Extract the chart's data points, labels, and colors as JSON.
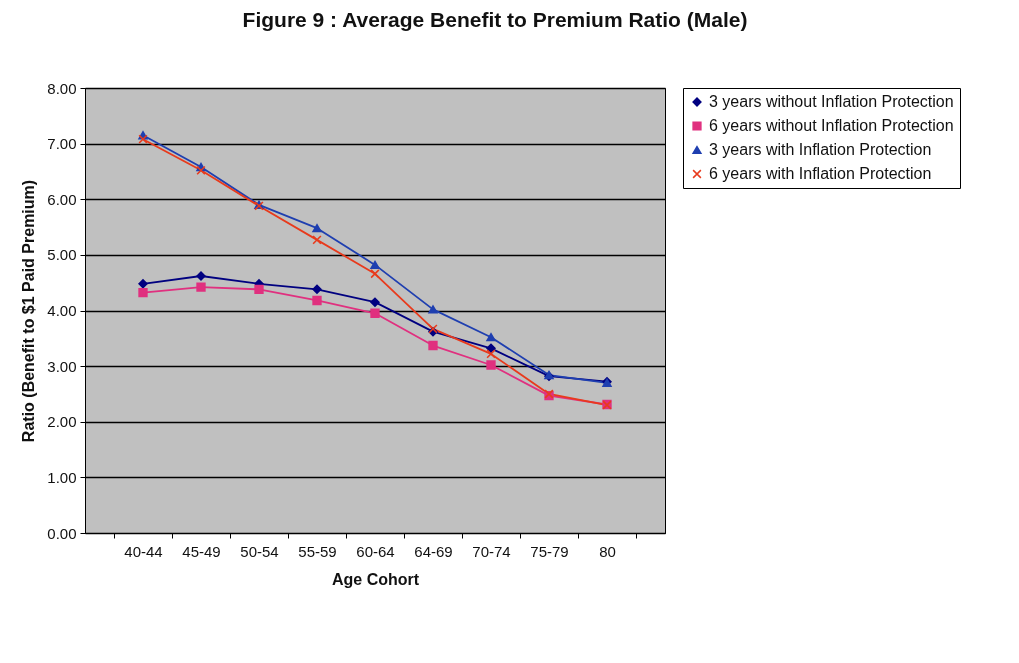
{
  "chart_data": {
    "type": "line",
    "title": "Figure 9 : Average Benefit to Premium Ratio (Male)",
    "xlabel": "Age Cohort",
    "ylabel": "Ratio (Benefit to $1 Paid Premium)",
    "categories": [
      "40-44",
      "45-49",
      "50-54",
      "55-59",
      "60-64",
      "64-69",
      "70-74",
      "75-79",
      "80"
    ],
    "series": [
      {
        "name": "3 years without Inflation Protection",
        "color": "#000080",
        "marker": "diamond",
        "values": [
          4.48,
          4.62,
          4.48,
          4.38,
          4.15,
          3.62,
          3.32,
          2.82,
          2.72
        ]
      },
      {
        "name": "6 years without Inflation Protection",
        "color": "#e0307f",
        "marker": "square",
        "values": [
          4.32,
          4.42,
          4.38,
          4.18,
          3.95,
          3.37,
          3.02,
          2.47,
          2.31
        ]
      },
      {
        "name": "3 years with Inflation Protection",
        "color": "#1f3fb0",
        "marker": "triangle",
        "values": [
          7.15,
          6.58,
          5.9,
          5.48,
          4.82,
          4.02,
          3.52,
          2.84,
          2.7
        ]
      },
      {
        "name": "6 years with Inflation Protection",
        "color": "#e83a1c",
        "marker": "cross",
        "values": [
          7.08,
          6.52,
          5.88,
          5.27,
          4.66,
          3.67,
          3.22,
          2.5,
          2.3
        ]
      }
    ],
    "ylim": [
      0,
      8
    ],
    "yticks": [
      {
        "value": 0,
        "label": "0.00"
      },
      {
        "value": 1,
        "label": "1.00"
      },
      {
        "value": 2,
        "label": "2.00"
      },
      {
        "value": 3,
        "label": "3.00"
      },
      {
        "value": 4,
        "label": "4.00"
      },
      {
        "value": 5,
        "label": "5.00"
      },
      {
        "value": 6,
        "label": "6.00"
      },
      {
        "value": 7,
        "label": "7.00"
      },
      {
        "value": 8,
        "label": "8.00"
      }
    ],
    "grid": "y",
    "legend": "right",
    "line_style": "solid"
  }
}
